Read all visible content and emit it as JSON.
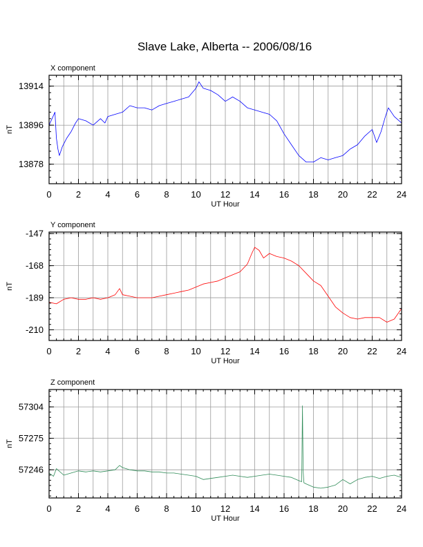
{
  "title": "Slave Lake, Alberta -- 2006/08/16",
  "panels": [
    {
      "key": "x",
      "title": "X component",
      "xlabel": "UT Hour",
      "ylabel": "nT",
      "color": "#0000ff",
      "yticks": [
        "13878",
        "13896",
        "13914"
      ],
      "xticks": [
        "0",
        "2",
        "4",
        "6",
        "8",
        "10",
        "12",
        "14",
        "16",
        "18",
        "20",
        "22",
        "24"
      ]
    },
    {
      "key": "y",
      "title": "Y component",
      "xlabel": "UT Hour",
      "ylabel": "nT",
      "color": "#ff0000",
      "yticks": [
        "-210",
        "-189",
        "-168",
        "-147"
      ],
      "xticks": [
        "0",
        "2",
        "4",
        "6",
        "8",
        "10",
        "12",
        "14",
        "16",
        "18",
        "20",
        "22",
        "24"
      ]
    },
    {
      "key": "z",
      "title": "Z component",
      "xlabel": "UT Hour",
      "ylabel": "nT",
      "color": "#2e8b57",
      "yticks": [
        "57246",
        "57275",
        "57304"
      ],
      "xticks": [
        "0",
        "2",
        "4",
        "6",
        "8",
        "10",
        "12",
        "14",
        "16",
        "18",
        "20",
        "22",
        "24"
      ]
    }
  ],
  "chart_data": [
    {
      "type": "line",
      "title": "X component",
      "xlabel": "UT Hour",
      "ylabel": "nT",
      "xlim": [
        0,
        24
      ],
      "ylim": [
        13869,
        13919
      ],
      "grid": true,
      "series": [
        {
          "color": "#0000ff",
          "x": [
            0,
            0.2,
            0.4,
            0.5,
            0.6,
            0.7,
            0.9,
            1.2,
            1.5,
            1.8,
            2,
            2.5,
            3,
            3.5,
            3.8,
            4,
            4.5,
            5,
            5.5,
            6,
            6.5,
            7,
            7.5,
            8,
            8.5,
            9,
            9.5,
            10,
            10.2,
            10.5,
            11,
            11.5,
            12,
            12.5,
            13,
            13.5,
            14,
            14.5,
            15,
            15.5,
            16,
            16.5,
            17,
            17.5,
            18,
            18.5,
            19,
            19.5,
            20,
            20.5,
            21,
            21.5,
            22,
            22.3,
            22.6,
            22.9,
            23.1,
            23.5,
            24
          ],
          "y": [
            13896,
            13899,
            13902,
            13890,
            13885,
            13882,
            13886,
            13890,
            13893,
            13897,
            13899,
            13898,
            13896,
            13899,
            13897,
            13900,
            13901,
            13902,
            13905,
            13904,
            13904,
            13903,
            13905,
            13906,
            13907,
            13908,
            13909,
            13913,
            13916,
            13913,
            13912,
            13910,
            13907,
            13909,
            13907,
            13904,
            13903,
            13902,
            13901,
            13898,
            13892,
            13887,
            13882,
            13879,
            13879,
            13881,
            13880,
            13881,
            13882,
            13885,
            13887,
            13891,
            13894,
            13888,
            13893,
            13900,
            13904,
            13900,
            13897
          ]
        }
      ]
    },
    {
      "type": "line",
      "title": "Y component",
      "xlabel": "UT Hour",
      "ylabel": "nT",
      "xlim": [
        0,
        24
      ],
      "ylim": [
        -217,
        -146
      ],
      "grid": true,
      "series": [
        {
          "color": "#ff0000",
          "x": [
            0,
            0.5,
            1,
            1.5,
            2,
            2.5,
            3,
            3.5,
            4,
            4.5,
            4.8,
            5,
            5.5,
            6,
            6.5,
            7,
            7.5,
            8,
            8.5,
            9,
            9.5,
            10,
            10.5,
            11,
            11.5,
            12,
            12.5,
            13,
            13.5,
            13.8,
            14,
            14.3,
            14.6,
            15,
            15.5,
            16,
            16.5,
            17,
            17.5,
            18,
            18.5,
            19,
            19.5,
            20,
            20.5,
            21,
            21.5,
            22,
            22.5,
            23,
            23.5,
            24
          ],
          "y": [
            -192,
            -193,
            -190,
            -189,
            -190,
            -190,
            -189,
            -190,
            -189,
            -187,
            -183,
            -187,
            -188,
            -189,
            -189,
            -189,
            -188,
            -187,
            -186,
            -185,
            -184,
            -182,
            -180,
            -179,
            -178,
            -176,
            -174,
            -172,
            -167,
            -160,
            -156,
            -158,
            -163,
            -160,
            -162,
            -163,
            -165,
            -168,
            -173,
            -178,
            -181,
            -188,
            -195,
            -199,
            -202,
            -203,
            -202,
            -202,
            -202,
            -205,
            -203,
            -196
          ]
        }
      ]
    },
    {
      "type": "line",
      "title": "Z component",
      "xlabel": "UT Hour",
      "ylabel": "nT",
      "xlim": [
        0,
        24
      ],
      "ylim": [
        57220,
        57320
      ],
      "grid": true,
      "series": [
        {
          "color": "#2e8b57",
          "x": [
            0,
            0.3,
            0.5,
            1,
            1.5,
            2,
            2.5,
            3,
            3.5,
            4,
            4.5,
            4.8,
            5,
            5.5,
            6,
            6.5,
            7,
            7.5,
            8,
            8.5,
            9,
            9.5,
            10,
            10.5,
            11,
            11.5,
            12,
            12.5,
            13,
            13.5,
            14,
            14.5,
            15,
            15.5,
            16,
            16.5,
            17,
            17.2,
            17.25,
            17.3,
            17.35,
            17.5,
            18,
            18.5,
            19,
            19.5,
            20,
            20.5,
            21,
            21.5,
            22,
            22.5,
            23,
            23.5,
            24
          ],
          "y": [
            57243,
            57240,
            57247,
            57241,
            57243,
            57245,
            57244,
            57245,
            57244,
            57245,
            57246,
            57250,
            57248,
            57246,
            57245,
            57245,
            57244,
            57244,
            57243,
            57243,
            57242,
            57241,
            57240,
            57237,
            57238,
            57239,
            57240,
            57241,
            57240,
            57239,
            57240,
            57241,
            57242,
            57241,
            57240,
            57239,
            57236,
            57235,
            57305,
            57245,
            57234,
            57233,
            57230,
            57229,
            57230,
            57232,
            57237,
            57233,
            57237,
            57239,
            57240,
            57238,
            57240,
            57241,
            57239
          ]
        }
      ]
    }
  ]
}
